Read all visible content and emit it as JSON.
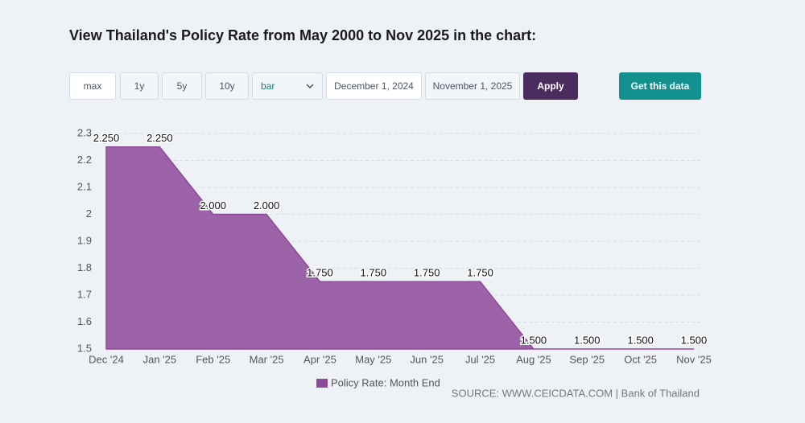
{
  "header": {
    "title": "View Thailand's Policy Rate from May 2000 to Nov 2025 in the chart:"
  },
  "controls": {
    "ranges": [
      "max",
      "1y",
      "5y",
      "10y"
    ],
    "chart_type": "bar",
    "start_date": "December 1, 2024",
    "end_date": "November 1, 2025",
    "apply": "Apply",
    "get_data": "Get this data"
  },
  "chart_data": {
    "type": "area",
    "categories": [
      "Dec '24",
      "Jan '25",
      "Feb '25",
      "Mar '25",
      "Apr '25",
      "May '25",
      "Jun '25",
      "Jul '25",
      "Aug '25",
      "Sep '25",
      "Oct '25",
      "Nov '25"
    ],
    "series": [
      {
        "name": "Policy Rate: Month End",
        "color": "#8e4a9a",
        "values": [
          2.25,
          2.25,
          2.0,
          2.0,
          1.75,
          1.75,
          1.75,
          1.75,
          1.5,
          1.5,
          1.5,
          1.5
        ],
        "value_labels": [
          "2.250",
          "2.250",
          "2.000",
          "2.000",
          "1.750",
          "1.750",
          "1.750",
          "1.750",
          "1.500",
          "1.500",
          "1.500",
          "1.500"
        ]
      }
    ],
    "ylim": [
      1.5,
      2.3
    ],
    "yticks": [
      1.5,
      1.6,
      1.7,
      1.8,
      1.9,
      2,
      2.1,
      2.2,
      2.3
    ],
    "grid": true,
    "source": "SOURCE: WWW.CEICDATA.COM | Bank of Thailand"
  }
}
